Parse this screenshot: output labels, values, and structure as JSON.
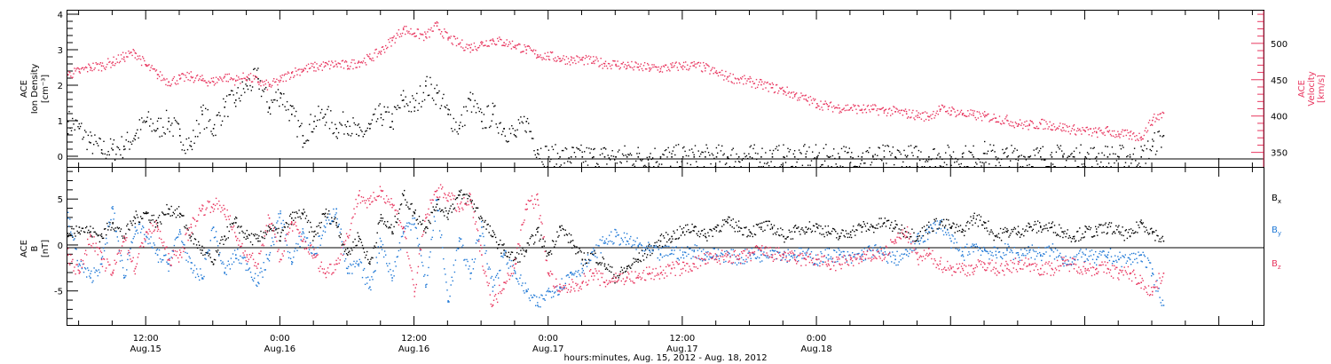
{
  "chart_data": [
    {
      "type": "scatter",
      "panel": "top",
      "left_axis": {
        "label_lines": [
          "ACE",
          "Ion Density",
          "[cm⁻³]"
        ],
        "ylim": [
          -0.3,
          4.1
        ],
        "ticks": [
          "0",
          "1",
          "2",
          "3",
          "4"
        ],
        "color": "#000000"
      },
      "right_axis": {
        "label_lines": [
          "ACE",
          "Velocity",
          "[km/s]"
        ],
        "ylim": [
          330,
          545
        ],
        "ticks": [
          "350",
          "400",
          "450",
          "500"
        ],
        "color": "#e8365f"
      },
      "x": {
        "unit": "hours since Aug.15 00:00",
        "xlim": [
          5,
          112
        ]
      },
      "series": [
        {
          "axis": "left",
          "color": "#000000",
          "x": [
            5,
            6,
            7,
            8,
            9,
            10,
            11,
            12,
            13,
            14,
            15,
            16,
            17,
            18,
            19,
            20,
            21,
            22,
            23,
            24,
            25,
            26,
            27,
            28,
            29,
            30,
            31,
            32,
            33,
            34,
            35,
            36,
            37,
            38,
            39,
            40,
            41,
            42,
            43,
            44,
            45,
            46,
            47,
            48,
            49,
            50,
            51,
            52,
            53,
            54,
            55,
            56,
            57,
            58,
            59,
            60,
            61,
            62,
            63,
            64,
            65,
            66,
            67,
            68,
            69,
            70,
            71,
            72,
            73,
            74,
            75,
            76,
            77,
            78,
            79,
            80,
            81,
            82,
            83,
            84,
            85,
            86,
            87,
            88,
            89,
            90,
            91,
            92,
            93,
            94,
            95,
            96,
            97,
            98,
            99,
            100,
            101,
            102,
            103
          ],
          "values": [
            1.0,
            0.8,
            0.4,
            0.2,
            0.2,
            0.3,
            0.6,
            1.0,
            0.8,
            1.0,
            0.6,
            0.3,
            1.2,
            0.8,
            1.4,
            1.6,
            2.0,
            2.2,
            1.4,
            1.8,
            1.2,
            0.6,
            1.0,
            1.2,
            0.8,
            1.0,
            0.6,
            0.8,
            1.2,
            1.0,
            1.6,
            1.4,
            2.0,
            1.8,
            1.2,
            0.8,
            1.6,
            1.0,
            1.2,
            0.8,
            0.6,
            1.0,
            0.2,
            0.0,
            0.0,
            0.0,
            0.0,
            0.0,
            0.0,
            0.0,
            0.0,
            0.0,
            0.0,
            0.0,
            0.0,
            0.0,
            0.0,
            0.0,
            0.0,
            0.0,
            0.0,
            0.0,
            0.0,
            0.0,
            0.0,
            0.0,
            0.0,
            0.0,
            0.0,
            0.0,
            0.0,
            0.0,
            0.0,
            0.0,
            0.0,
            0.0,
            0.0,
            0.0,
            0.0,
            0.0,
            0.0,
            0.0,
            0.1,
            0.0,
            0.0,
            0.0,
            0.0,
            0.0,
            0.0,
            0.0,
            0.0,
            0.0,
            0.0,
            0.0,
            0.0,
            0.0,
            0.0,
            0.3,
            0.6
          ]
        },
        {
          "axis": "right",
          "color": "#e8365f",
          "x": [
            5,
            6,
            7,
            8,
            9,
            10,
            11,
            12,
            13,
            14,
            15,
            16,
            17,
            18,
            19,
            20,
            21,
            22,
            23,
            24,
            25,
            26,
            27,
            28,
            29,
            30,
            31,
            32,
            33,
            34,
            35,
            36,
            37,
            38,
            39,
            40,
            41,
            42,
            43,
            44,
            45,
            46,
            47,
            48,
            49,
            50,
            51,
            52,
            53,
            54,
            55,
            56,
            57,
            58,
            59,
            60,
            61,
            62,
            63,
            64,
            65,
            66,
            67,
            68,
            69,
            70,
            71,
            72,
            73,
            74,
            75,
            76,
            77,
            78,
            79,
            80,
            81,
            82,
            83,
            84,
            85,
            86,
            87,
            88,
            89,
            90,
            91,
            92,
            93,
            94,
            95,
            96,
            97,
            98,
            99,
            100,
            101,
            102,
            103
          ],
          "values": [
            458,
            462,
            468,
            470,
            475,
            482,
            488,
            470,
            458,
            448,
            452,
            455,
            450,
            448,
            455,
            450,
            455,
            448,
            442,
            450,
            460,
            465,
            468,
            470,
            472,
            470,
            475,
            480,
            490,
            505,
            520,
            515,
            510,
            525,
            508,
            500,
            495,
            500,
            505,
            502,
            498,
            492,
            485,
            483,
            480,
            478,
            478,
            476,
            473,
            472,
            470,
            468,
            467,
            466,
            468,
            470,
            470,
            467,
            460,
            455,
            451,
            448,
            444,
            440,
            436,
            430,
            424,
            418,
            414,
            412,
            412,
            410,
            410,
            408,
            407,
            404,
            402,
            400,
            410,
            408,
            404,
            402,
            400,
            398,
            395,
            390,
            388,
            390,
            388,
            385,
            382,
            380,
            378,
            380,
            376,
            374,
            372,
            395,
            405
          ]
        }
      ]
    },
    {
      "type": "scatter",
      "panel": "bottom",
      "left_axis": {
        "label_lines": [
          "ACE",
          "B",
          "[nT]"
        ],
        "ylim": [
          -8.7,
          8.4
        ],
        "ticks": [
          "-5",
          "0",
          "5"
        ],
        "color": "#000000"
      },
      "x": {
        "unit": "hours since Aug.15 00:00",
        "xlim": [
          5,
          112
        ],
        "tick_labels": [
          {
            "hours": 12,
            "time": "12:00",
            "date": "Aug.15"
          },
          {
            "hours": 24,
            "time": "0:00",
            "date": "Aug.16"
          },
          {
            "hours": 36,
            "time": "12:00",
            "date": "Aug.16"
          },
          {
            "hours": 48,
            "time": "0:00",
            "date": "Aug.17"
          },
          {
            "hours": 60,
            "time": "12:00",
            "date": "Aug.17"
          },
          {
            "hours": 72,
            "time": "0:00",
            "date": "Aug.18"
          }
        ],
        "title": "hours:minutes, Aug. 15, 2012 - Aug. 18, 2012"
      },
      "legend": [
        "B",
        "B",
        "B"
      ],
      "series": [
        {
          "name": "Bx",
          "color": "#000000",
          "x": [
            5,
            6,
            7,
            8,
            9,
            10,
            11,
            12,
            13,
            14,
            15,
            16,
            17,
            18,
            19,
            20,
            21,
            22,
            23,
            24,
            25,
            26,
            27,
            28,
            29,
            30,
            31,
            32,
            33,
            34,
            35,
            36,
            37,
            38,
            39,
            40,
            41,
            42,
            43,
            44,
            45,
            46,
            47,
            48,
            49,
            50,
            51,
            52,
            53,
            54,
            55,
            56,
            57,
            58,
            59,
            60,
            61,
            62,
            63,
            64,
            65,
            66,
            67,
            68,
            69,
            70,
            71,
            72,
            73,
            74,
            75,
            76,
            77,
            78,
            79,
            80,
            81,
            82,
            83,
            84,
            85,
            86,
            87,
            88,
            89,
            90,
            91,
            92,
            93,
            94,
            95,
            96,
            97,
            98,
            99,
            100,
            101,
            102,
            103
          ],
          "values": [
            1.0,
            2.0,
            1.5,
            1.0,
            2.5,
            1.0,
            3.0,
            3.5,
            2.5,
            4.0,
            3.5,
            1.0,
            -0.5,
            -2.0,
            1.0,
            2.5,
            1.0,
            0.5,
            2.0,
            1.0,
            3.0,
            3.5,
            1.0,
            3.5,
            2.5,
            -1.0,
            1.0,
            -2.0,
            3.0,
            1.5,
            5.5,
            3.5,
            2.0,
            4.5,
            3.5,
            5.5,
            5.0,
            3.0,
            1.0,
            -0.5,
            -1.5,
            -0.5,
            1.5,
            -1.0,
            2.0,
            0.5,
            -1.5,
            -1.0,
            -2.0,
            -3.5,
            -2.5,
            -1.5,
            -0.5,
            0.5,
            1.0,
            1.5,
            2.0,
            1.0,
            2.0,
            2.5,
            2.0,
            1.5,
            2.0,
            2.0,
            1.0,
            1.5,
            2.0,
            2.0,
            1.5,
            1.0,
            1.5,
            2.0,
            2.0,
            2.5,
            2.0,
            1.5,
            1.0,
            2.0,
            2.5,
            2.0,
            1.5,
            3.0,
            2.5,
            1.0,
            1.5,
            1.5,
            2.0,
            2.0,
            2.0,
            1.5,
            1.0,
            1.5,
            1.5,
            2.0,
            1.5,
            1.0,
            2.5,
            1.5,
            0.5
          ]
        },
        {
          "name": "By",
          "color": "#1f78d6",
          "x": [
            5,
            6,
            7,
            8,
            9,
            10,
            11,
            12,
            13,
            14,
            15,
            16,
            17,
            18,
            19,
            20,
            21,
            22,
            23,
            24,
            25,
            26,
            27,
            28,
            29,
            30,
            31,
            32,
            33,
            34,
            35,
            36,
            37,
            38,
            39,
            40,
            41,
            42,
            43,
            44,
            45,
            46,
            47,
            48,
            49,
            50,
            51,
            52,
            53,
            54,
            55,
            56,
            57,
            58,
            59,
            60,
            61,
            62,
            63,
            64,
            65,
            66,
            67,
            68,
            69,
            70,
            71,
            72,
            73,
            74,
            75,
            76,
            77,
            78,
            79,
            80,
            81,
            82,
            83,
            84,
            85,
            86,
            87,
            88,
            89,
            90,
            91,
            92,
            93,
            94,
            95,
            96,
            97,
            98,
            99,
            100,
            101,
            102,
            103
          ],
          "values": [
            3.0,
            -2.0,
            -3.5,
            -2.0,
            4.0,
            -3.5,
            2.0,
            1.0,
            -1.0,
            -2.0,
            1.5,
            -2.5,
            -3.5,
            2.0,
            -3.0,
            -1.0,
            -2.0,
            -4.0,
            -1.0,
            3.5,
            -2.0,
            1.5,
            -1.0,
            2.0,
            4.0,
            -3.0,
            -2.0,
            -4.5,
            0.5,
            -3.5,
            1.5,
            3.0,
            -4.5,
            5.0,
            -6.0,
            0.5,
            -3.0,
            2.0,
            -4.5,
            -1.0,
            -3.0,
            -5.0,
            -6.5,
            -5.0,
            -4.5,
            -3.0,
            -2.5,
            -1.0,
            0.5,
            1.0,
            0.5,
            0.0,
            -0.5,
            -1.0,
            -0.5,
            -1.0,
            -0.5,
            -1.0,
            -1.0,
            -1.0,
            -1.5,
            -1.0,
            -1.0,
            -0.5,
            -1.0,
            -1.0,
            -1.0,
            -1.5,
            -1.0,
            -1.0,
            -1.5,
            -1.0,
            -0.5,
            -1.0,
            -1.5,
            -1.0,
            0.5,
            1.5,
            2.5,
            0.5,
            -1.0,
            0.0,
            -0.5,
            -1.0,
            -0.5,
            -1.0,
            -0.5,
            -1.0,
            -0.5,
            -1.5,
            -1.5,
            -1.0,
            -1.5,
            -1.0,
            -1.5,
            -1.5,
            -1.0,
            -3.0,
            -6.5
          ]
        },
        {
          "name": "Bz",
          "color": "#e8365f",
          "x": [
            5,
            6,
            7,
            8,
            9,
            10,
            11,
            12,
            13,
            14,
            15,
            16,
            17,
            18,
            19,
            20,
            21,
            22,
            23,
            24,
            25,
            26,
            27,
            28,
            29,
            30,
            31,
            32,
            33,
            34,
            35,
            36,
            37,
            38,
            39,
            40,
            41,
            42,
            43,
            44,
            45,
            46,
            47,
            48,
            49,
            50,
            51,
            52,
            53,
            54,
            55,
            56,
            57,
            58,
            59,
            60,
            61,
            62,
            63,
            64,
            65,
            66,
            67,
            68,
            69,
            70,
            71,
            72,
            73,
            74,
            75,
            76,
            77,
            78,
            79,
            80,
            81,
            82,
            83,
            84,
            85,
            86,
            87,
            88,
            89,
            90,
            91,
            92,
            93,
            94,
            95,
            96,
            97,
            98,
            99,
            100,
            101,
            102,
            103
          ],
          "values": [
            -1.0,
            -3.0,
            1.0,
            -1.5,
            -3.0,
            1.0,
            -2.5,
            1.5,
            2.0,
            -1.5,
            -1.0,
            2.0,
            4.0,
            4.5,
            4.0,
            1.0,
            -1.0,
            -2.0,
            3.0,
            -1.5,
            2.5,
            0.5,
            -1.0,
            -3.0,
            -2.0,
            1.0,
            5.5,
            4.5,
            6.0,
            4.5,
            2.0,
            -5.0,
            3.0,
            6.0,
            5.5,
            4.0,
            5.0,
            -1.0,
            -6.5,
            -4.0,
            -2.0,
            4.5,
            5.0,
            -3.0,
            -5.0,
            -4.5,
            -4.0,
            -3.0,
            -4.0,
            -3.5,
            -3.5,
            -3.5,
            -3.0,
            -3.0,
            -2.5,
            -2.5,
            -2.0,
            -1.5,
            -1.5,
            -1.0,
            -1.5,
            -1.0,
            -0.5,
            -1.0,
            -1.0,
            -1.5,
            -1.5,
            -1.5,
            -2.0,
            -2.0,
            -1.5,
            -1.5,
            -1.0,
            -1.0,
            0.5,
            1.5,
            -1.5,
            -1.0,
            -2.0,
            -2.5,
            -2.5,
            -2.5,
            -2.0,
            -2.5,
            -2.5,
            -2.0,
            -2.0,
            -2.5,
            -2.5,
            -2.0,
            -2.0,
            -2.5,
            -2.5,
            -2.5,
            -3.0,
            -3.0,
            -4.0,
            -5.0,
            -3.0
          ]
        }
      ]
    }
  ],
  "colors": {
    "density": "#000000",
    "velocity": "#e8365f",
    "bx": "#000000",
    "by": "#1f78d6",
    "bz": "#e8365f"
  }
}
